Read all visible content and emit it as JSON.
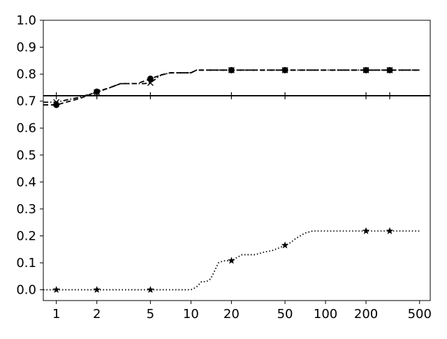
{
  "chart_data": {
    "type": "line",
    "title": "",
    "xlabel": "",
    "ylabel": "",
    "xscale": "log",
    "xlim": [
      0.8,
      600
    ],
    "ylim": [
      -0.04,
      1.0
    ],
    "grid": false,
    "legend": "none",
    "x_ticks": [
      1,
      2,
      5,
      10,
      20,
      50,
      100,
      200,
      500
    ],
    "y_ticks": [
      0.0,
      0.1,
      0.2,
      0.3,
      0.4,
      0.5,
      0.6,
      0.7,
      0.8,
      0.9,
      1.0
    ],
    "series": [
      {
        "style": "solid",
        "marker": "plus",
        "color": "#000000",
        "x": [
          0.8,
          600
        ],
        "y": [
          0.72,
          0.72
        ],
        "marker_x": [
          1,
          2,
          5,
          20,
          50,
          200,
          300
        ],
        "marker_y": [
          0.72,
          0.72,
          0.72,
          0.72,
          0.72,
          0.72,
          0.72
        ]
      },
      {
        "style": "dashed",
        "marker": "circle",
        "color": "#000000",
        "x": [
          0.8,
          1,
          1.5,
          2,
          2.5,
          3,
          4,
          5,
          6,
          7,
          8,
          9,
          10,
          11,
          12,
          15,
          20,
          50,
          100,
          200,
          300,
          500
        ],
        "y": [
          0.686,
          0.686,
          0.71,
          0.735,
          0.75,
          0.765,
          0.765,
          0.783,
          0.797,
          0.805,
          0.805,
          0.805,
          0.805,
          0.815,
          0.815,
          0.815,
          0.815,
          0.815,
          0.815,
          0.815,
          0.815,
          0.815
        ],
        "marker_x": [
          1,
          2,
          5,
          20,
          50,
          200,
          300
        ],
        "marker_y": [
          0.686,
          0.735,
          0.783,
          0.815,
          0.815,
          0.815,
          0.815
        ]
      },
      {
        "style": "dashdot",
        "marker": "x",
        "color": "#000000",
        "x": [
          0.8,
          1,
          1.5,
          2,
          2.5,
          3,
          4,
          4.5,
          5,
          6,
          7,
          8,
          9,
          10,
          11,
          12,
          15,
          20,
          50,
          100,
          200,
          300,
          500
        ],
        "y": [
          0.696,
          0.696,
          0.715,
          0.733,
          0.75,
          0.765,
          0.765,
          0.765,
          0.768,
          0.797,
          0.805,
          0.805,
          0.805,
          0.805,
          0.815,
          0.815,
          0.815,
          0.815,
          0.815,
          0.815,
          0.815,
          0.815,
          0.815
        ],
        "marker_x": [
          1,
          2,
          5,
          20,
          50,
          200,
          300
        ],
        "marker_y": [
          0.696,
          0.733,
          0.768,
          0.815,
          0.815,
          0.815,
          0.815
        ]
      },
      {
        "style": "dotted",
        "marker": "star",
        "color": "#000000",
        "x": [
          0.8,
          1,
          2,
          5,
          10,
          11,
          12,
          13,
          14,
          15,
          16,
          17,
          18,
          19,
          20,
          22,
          24,
          26,
          30,
          35,
          40,
          45,
          50,
          55,
          60,
          65,
          70,
          80,
          100,
          150,
          200,
          300,
          500
        ],
        "y": [
          0,
          0,
          0,
          0,
          0,
          0.01,
          0.03,
          0.03,
          0.04,
          0.07,
          0.1,
          0.105,
          0.108,
          0.108,
          0.108,
          0.12,
          0.13,
          0.13,
          0.13,
          0.14,
          0.145,
          0.155,
          0.165,
          0.175,
          0.19,
          0.2,
          0.21,
          0.218,
          0.218,
          0.218,
          0.218,
          0.218,
          0.218
        ],
        "marker_x": [
          1,
          2,
          5,
          20,
          50,
          200,
          300
        ],
        "marker_y": [
          0,
          0,
          0,
          0.108,
          0.165,
          0.218,
          0.218
        ]
      }
    ]
  }
}
